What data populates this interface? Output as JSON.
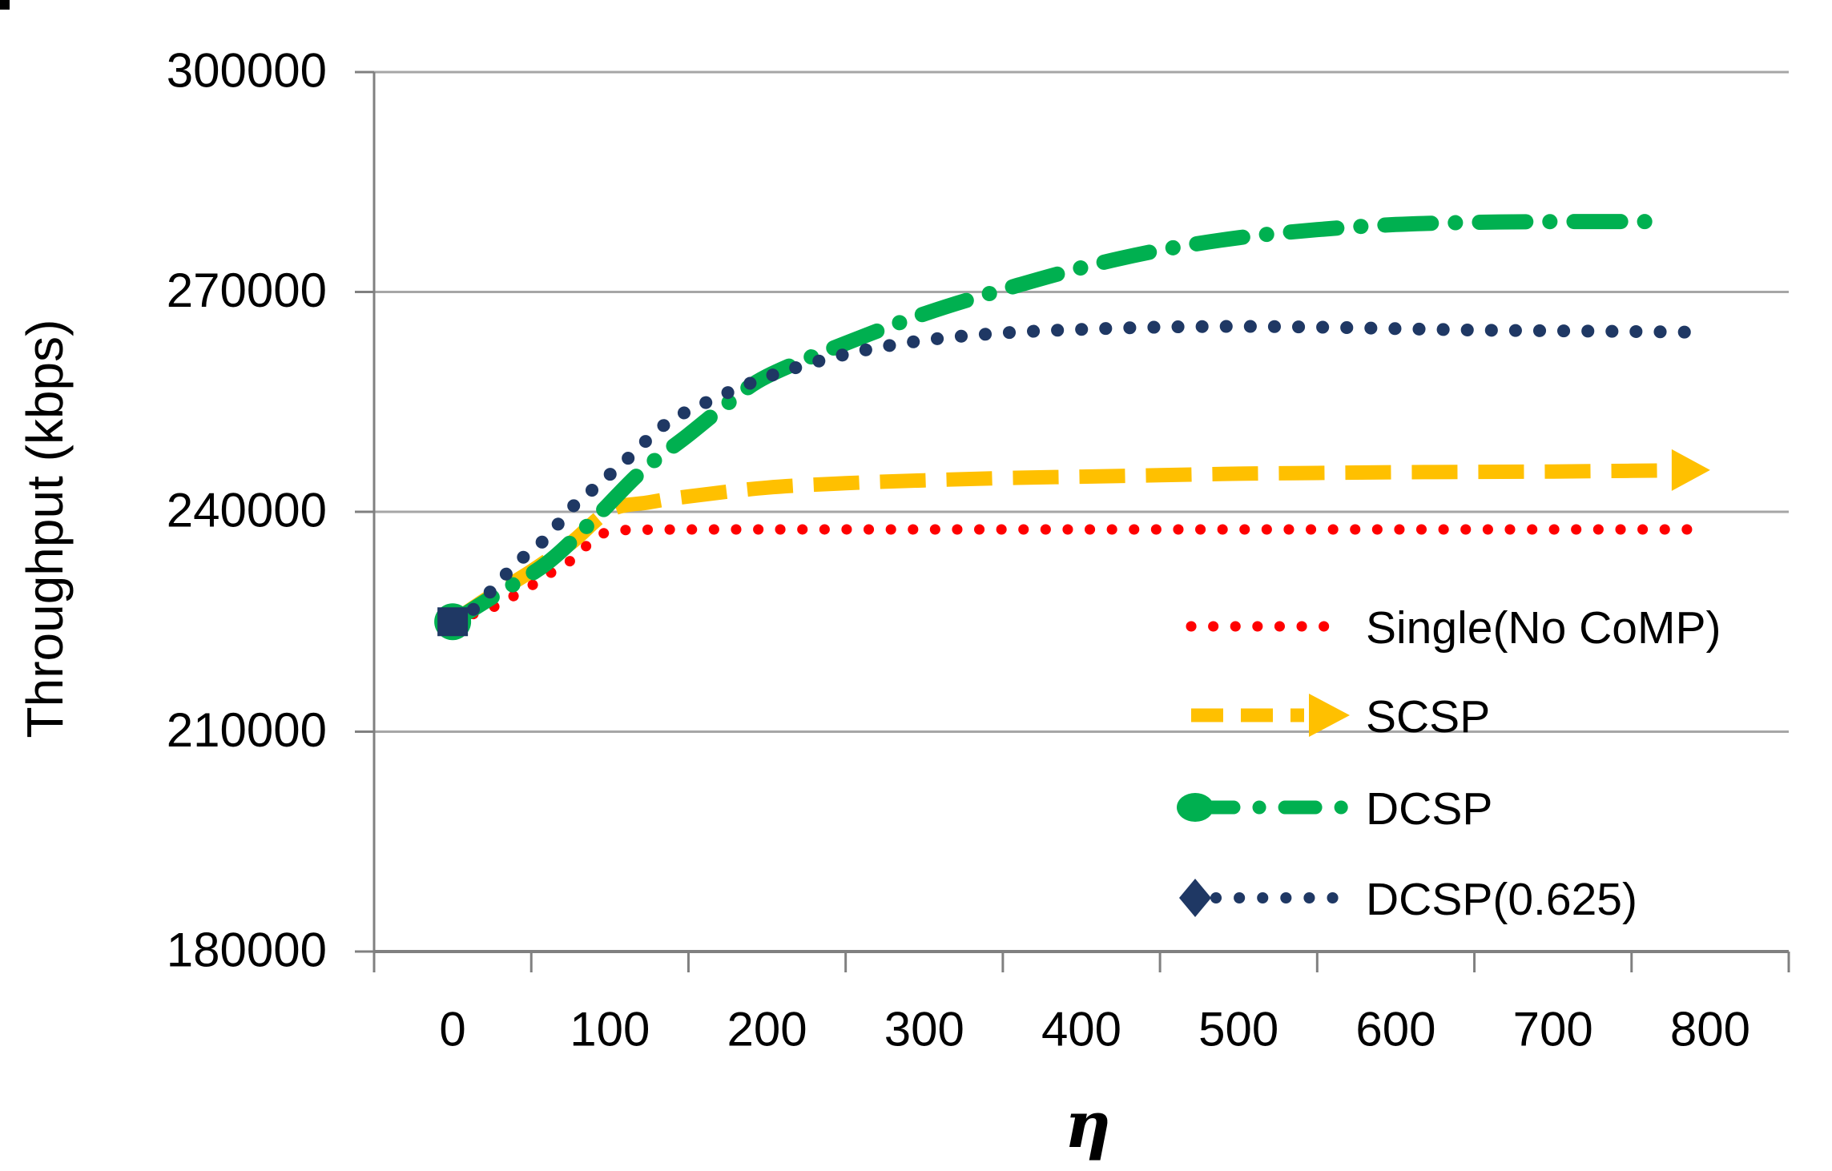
{
  "chart_data": {
    "type": "line",
    "title": "",
    "xlabel": "η",
    "ylabel": "Throughput (kbps)",
    "xlim": [
      -50,
      850
    ],
    "ylim": [
      180000,
      300000
    ],
    "grid": "horizontal",
    "legend_position": "right-middle",
    "x_ticks": [
      {
        "label": "0",
        "value": 0
      },
      {
        "label": "100",
        "value": 100
      },
      {
        "label": "200",
        "value": 200
      },
      {
        "label": "300",
        "value": 300
      },
      {
        "label": "400",
        "value": 400
      },
      {
        "label": "500",
        "value": 500
      },
      {
        "label": "600",
        "value": 600
      },
      {
        "label": "700",
        "value": 700
      },
      {
        "label": "800",
        "value": 800
      }
    ],
    "y_ticks": [
      {
        "label": "300000",
        "value": 300000
      },
      {
        "label": "270000",
        "value": 270000
      },
      {
        "label": "240000",
        "value": 240000
      },
      {
        "label": "210000",
        "value": 210000
      },
      {
        "label": "180000",
        "value": 180000
      }
    ],
    "colors": {
      "gridline": "#A6A6A6",
      "axis_line": "#808080",
      "text": "#000000",
      "single_no_comp": "#FF0000",
      "scsp": "#FFC000",
      "dcsp": "#00B050",
      "dcsp_0625": "#1F3864"
    },
    "series": [
      {
        "name": "Single(No CoMP)",
        "color": "#FF0000",
        "line_style": "dotted-fine",
        "marker": "none",
        "end_arrow": false,
        "points": [
          [
            0,
            225000
          ],
          [
            15,
            226200
          ],
          [
            27,
            227100
          ],
          [
            37,
            228300
          ],
          [
            50,
            229900
          ],
          [
            60,
            231400
          ],
          [
            70,
            232500
          ],
          [
            80,
            234300
          ],
          [
            90,
            236300
          ],
          [
            100,
            237300
          ],
          [
            120,
            237550
          ],
          [
            200,
            237600
          ],
          [
            300,
            237600
          ],
          [
            400,
            237600
          ],
          [
            500,
            237600
          ],
          [
            600,
            237600
          ],
          [
            700,
            237600
          ],
          [
            795,
            237600
          ]
        ]
      },
      {
        "name": "SCSP",
        "color": "#FFC000",
        "line_style": "dashed",
        "marker": "none",
        "end_arrow": true,
        "arrow_point": [
          800,
          245700
        ],
        "points": [
          [
            0,
            225000
          ],
          [
            25,
            228600
          ],
          [
            50,
            231900
          ],
          [
            75,
            235700
          ],
          [
            100,
            240200
          ],
          [
            125,
            241300
          ],
          [
            150,
            242100
          ],
          [
            200,
            243300
          ],
          [
            250,
            243900
          ],
          [
            300,
            244300
          ],
          [
            350,
            244600
          ],
          [
            400,
            244800
          ],
          [
            450,
            245000
          ],
          [
            500,
            245200
          ],
          [
            550,
            245300
          ],
          [
            600,
            245400
          ],
          [
            650,
            245450
          ],
          [
            700,
            245500
          ],
          [
            750,
            245600
          ],
          [
            773,
            245650
          ]
        ]
      },
      {
        "name": "DCSP",
        "color": "#00B050",
        "line_style": "dash-dot",
        "marker": "circle-start",
        "end_arrow": false,
        "points": [
          [
            0,
            225000
          ],
          [
            30,
            229000
          ],
          [
            60,
            233000
          ],
          [
            90,
            239000
          ],
          [
            120,
            245500
          ],
          [
            150,
            250500
          ],
          [
            175,
            254800
          ],
          [
            200,
            258500
          ],
          [
            250,
            263000
          ],
          [
            300,
            267000
          ],
          [
            345,
            270000
          ],
          [
            400,
            273300
          ],
          [
            450,
            275700
          ],
          [
            500,
            277400
          ],
          [
            550,
            278500
          ],
          [
            600,
            279200
          ],
          [
            650,
            279500
          ],
          [
            700,
            279600
          ],
          [
            770,
            279600
          ]
        ]
      },
      {
        "name": "DCSP(0.625)",
        "color": "#1F3864",
        "line_style": "dotted",
        "marker": "square-start",
        "end_arrow": false,
        "points": [
          [
            0,
            225000
          ],
          [
            15,
            227000
          ],
          [
            30,
            230600
          ],
          [
            45,
            233800
          ],
          [
            60,
            236500
          ],
          [
            75,
            240400
          ],
          [
            90,
            243200
          ],
          [
            110,
            247000
          ],
          [
            135,
            251900
          ],
          [
            160,
            254800
          ],
          [
            200,
            258400
          ],
          [
            250,
            261500
          ],
          [
            300,
            263400
          ],
          [
            350,
            264400
          ],
          [
            400,
            264900
          ],
          [
            450,
            265200
          ],
          [
            500,
            265300
          ],
          [
            550,
            265200
          ],
          [
            600,
            265000
          ],
          [
            650,
            264800
          ],
          [
            700,
            264700
          ],
          [
            750,
            264600
          ],
          [
            792,
            264500
          ]
        ]
      }
    ]
  }
}
